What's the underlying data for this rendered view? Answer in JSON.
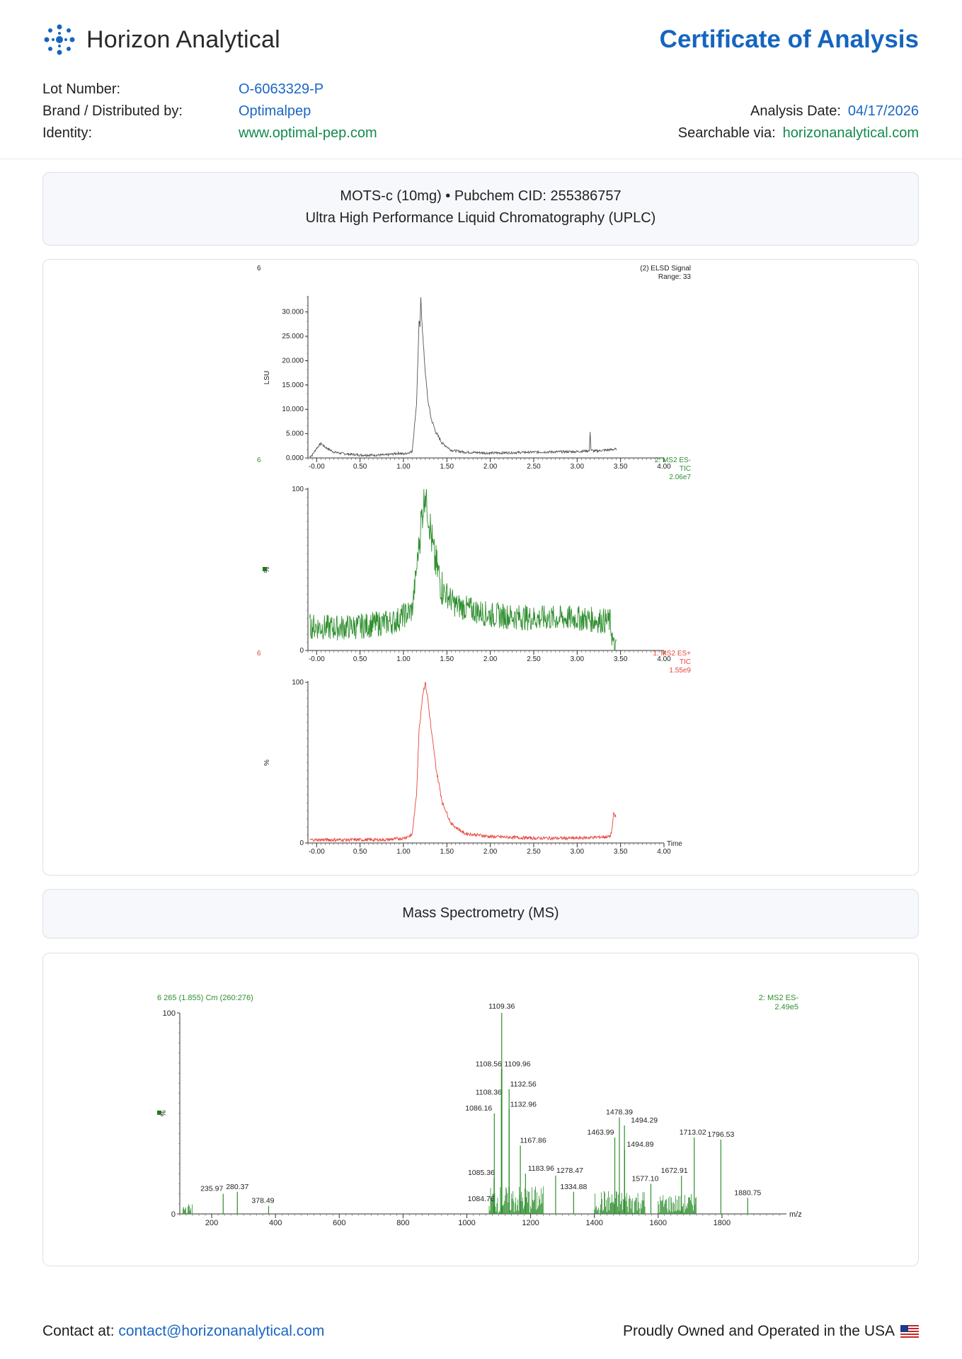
{
  "header": {
    "brand_name": "Horizon Analytical",
    "doc_title": "Certificate of Analysis",
    "lot_label": "Lot Number:",
    "lot_value": "O-6063329-P",
    "brand_label": "Brand / Distributed by:",
    "brand_value": "Optimalpep",
    "identity_label": "Identity:",
    "identity_value": "www.optimal-pep.com",
    "date_label": "Analysis Date:",
    "date_value": "04/17/2026",
    "search_label": "Searchable via:",
    "search_value": "horizonanalytical.com"
  },
  "colors": {
    "accent": "#1565c0",
    "green": "#138a4f",
    "elsd": "#555555",
    "ms_neg": "#2f8f2f",
    "ms_pos": "#e8453c"
  },
  "uplc": {
    "line1": "MOTS-c (10mg) • Pubchem CID: 255386757",
    "line2": "Ultra High Performance Liquid Chromatography (UPLC)"
  },
  "ms": {
    "title": "Mass Spectrometry (MS)"
  },
  "chart_data": [
    {
      "type": "line",
      "id": "elsd",
      "corner_label": "6",
      "ylabel": "LSU",
      "legend": [
        "(2) ELSD Signal",
        "Range: 33"
      ],
      "x_ticks": [
        "-0.00",
        "0.50",
        "1.00",
        "1.50",
        "2.00",
        "2.50",
        "3.00",
        "3.50",
        "4.00"
      ],
      "y_ticks": [
        "0.000",
        "5.000",
        "10.000",
        "15.000",
        "20.000",
        "25.000",
        "30.000"
      ],
      "xlim": [
        -0.1,
        4.0
      ],
      "ylim": [
        0,
        33
      ],
      "x": [
        -0.08,
        -0.05,
        0.0,
        0.05,
        0.1,
        0.2,
        0.3,
        0.5,
        0.8,
        0.95,
        1.0,
        1.1,
        1.15,
        1.18,
        1.19,
        1.2,
        1.21,
        1.22,
        1.23,
        1.25,
        1.28,
        1.32,
        1.38,
        1.45,
        1.55,
        1.7,
        2.0,
        2.5,
        3.0,
        3.14,
        3.15,
        3.16,
        3.2,
        3.45
      ],
      "y": [
        0.3,
        0.6,
        2.0,
        3.0,
        2.2,
        1.2,
        0.9,
        0.6,
        0.6,
        1.0,
        0.8,
        1.3,
        11.0,
        28.0,
        27.0,
        33.0,
        29.0,
        26.0,
        23.0,
        18.0,
        12.0,
        8.0,
        5.0,
        3.0,
        1.6,
        1.2,
        1.0,
        1.2,
        1.3,
        1.5,
        5.5,
        1.6,
        1.4,
        1.8
      ]
    },
    {
      "type": "line",
      "id": "ms2_neg",
      "corner_label": "6",
      "ylabel": "%",
      "legend": [
        "2: MS2 ES-",
        "TIC",
        "2.06e7"
      ],
      "x_ticks": [
        "-0.00",
        "0.50",
        "1.00",
        "1.50",
        "2.00",
        "2.50",
        "3.00",
        "3.50",
        "4.00"
      ],
      "y_ticks": [
        "0",
        "100"
      ],
      "xlim": [
        -0.1,
        4.0
      ],
      "ylim": [
        0,
        100
      ],
      "x": [
        -0.08,
        0.2,
        0.5,
        0.9,
        1.1,
        1.15,
        1.2,
        1.25,
        1.3,
        1.35,
        1.45,
        1.6,
        2.0,
        2.5,
        3.0,
        3.38,
        3.4,
        3.42,
        3.45
      ],
      "y": [
        15,
        14,
        15,
        18,
        25,
        50,
        78,
        100,
        80,
        58,
        38,
        28,
        22,
        20,
        20,
        18,
        10,
        2,
        0
      ]
    },
    {
      "type": "line",
      "id": "ms2_pos",
      "corner_label": "6",
      "ylabel": "%",
      "xlabel": "Time",
      "legend": [
        "1: MS2 ES+",
        "TIC",
        "1.55e9"
      ],
      "x_ticks": [
        "-0.00",
        "0.50",
        "1.00",
        "1.50",
        "2.00",
        "2.50",
        "3.00",
        "3.50",
        "4.00"
      ],
      "y_ticks": [
        "0",
        "100"
      ],
      "xlim": [
        -0.1,
        4.0
      ],
      "ylim": [
        0,
        100
      ],
      "x": [
        -0.08,
        0.2,
        0.5,
        0.8,
        1.0,
        1.1,
        1.15,
        1.18,
        1.22,
        1.25,
        1.28,
        1.32,
        1.38,
        1.45,
        1.55,
        1.7,
        2.0,
        2.5,
        3.0,
        3.38,
        3.4,
        3.42,
        3.45
      ],
      "y": [
        2,
        2,
        2,
        2,
        3,
        5,
        30,
        70,
        92,
        100,
        90,
        70,
        45,
        25,
        12,
        6,
        4,
        3,
        3,
        4,
        8,
        18,
        16
      ]
    },
    {
      "type": "bar",
      "id": "ms_spectrum",
      "header": "6 265 (1.855) Cm (260:276)",
      "ylabel": "%",
      "xlabel": "m/z",
      "legend": [
        "2: MS2 ES-",
        "2.49e5"
      ],
      "x_ticks": [
        "200",
        "400",
        "600",
        "800",
        "1000",
        "1200",
        "1400",
        "1600",
        "1800"
      ],
      "y_ticks": [
        "0",
        "100"
      ],
      "xlim": [
        100,
        1980
      ],
      "ylim": [
        0,
        100
      ],
      "peaks": [
        {
          "mz": 235.97,
          "i": 10,
          "label": "235.97"
        },
        {
          "mz": 280.37,
          "i": 11,
          "label": "280.37"
        },
        {
          "mz": 378.49,
          "i": 4,
          "label": "378.49"
        },
        {
          "mz": 1084.76,
          "i": 5,
          "label": "1084.76"
        },
        {
          "mz": 1085.36,
          "i": 18,
          "label": "1085.36"
        },
        {
          "mz": 1086.16,
          "i": 50,
          "label": "1086.16"
        },
        {
          "mz": 1108.36,
          "i": 58,
          "label": "1108.36"
        },
        {
          "mz": 1108.56,
          "i": 72,
          "label": "1108.56"
        },
        {
          "mz": 1109.36,
          "i": 100,
          "label": "1109.36"
        },
        {
          "mz": 1109.96,
          "i": 72,
          "label": "1109.96"
        },
        {
          "mz": 1132.56,
          "i": 62,
          "label": "1132.56"
        },
        {
          "mz": 1132.96,
          "i": 52,
          "label": "1132.96"
        },
        {
          "mz": 1167.86,
          "i": 34,
          "label": "1167.86"
        },
        {
          "mz": 1183.96,
          "i": 20,
          "label": "1183.96"
        },
        {
          "mz": 1278.47,
          "i": 19,
          "label": "1278.47"
        },
        {
          "mz": 1334.88,
          "i": 11,
          "label": "1334.88"
        },
        {
          "mz": 1463.99,
          "i": 38,
          "label": "1463.99"
        },
        {
          "mz": 1478.39,
          "i": 48,
          "label": "1478.39"
        },
        {
          "mz": 1494.29,
          "i": 44,
          "label": "1494.29"
        },
        {
          "mz": 1494.89,
          "i": 32,
          "label": "1494.89"
        },
        {
          "mz": 1577.1,
          "i": 15,
          "label": "1577.10"
        },
        {
          "mz": 1672.91,
          "i": 19,
          "label": "1672.91"
        },
        {
          "mz": 1713.02,
          "i": 38,
          "label": "1713.02"
        },
        {
          "mz": 1796.53,
          "i": 37,
          "label": "1796.53"
        },
        {
          "mz": 1880.75,
          "i": 8,
          "label": "1880.75"
        }
      ]
    }
  ],
  "footer": {
    "contact_label": "Contact at:",
    "contact_email": "contact@horizonanalytical.com",
    "usa_text": "Proudly Owned and Operated in the USA",
    "flag_icon": "us-flag-icon"
  }
}
